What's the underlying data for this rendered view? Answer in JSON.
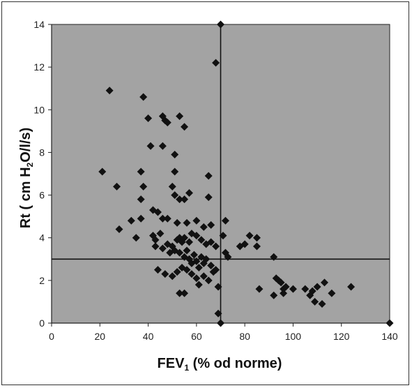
{
  "chart_data": {
    "type": "scatter",
    "xlabel": "FEV1 (% od norme)",
    "xlabel_parts": {
      "main": "FEV",
      "sub": "1",
      "rest": " (% od norme)"
    },
    "ylabel": "Rt ( cm H2O/l/s)",
    "ylabel_parts": {
      "a": "Rt ( cm H",
      "sub": "2",
      "b": "O/l/s)"
    },
    "xlim": [
      0,
      140
    ],
    "ylim": [
      0,
      14
    ],
    "xticks": [
      "0",
      "20",
      "40",
      "60",
      "80",
      "100",
      "120",
      "140"
    ],
    "yticks": [
      "0",
      "2",
      "4",
      "6",
      "8",
      "10",
      "12",
      "14"
    ],
    "reference_lines": {
      "x": 70,
      "y": 3
    },
    "plot_background": "#a3a3a3",
    "marker_color": "#111111",
    "marker": "diamond",
    "grid": false,
    "points": [
      [
        24,
        10.9
      ],
      [
        38,
        10.6
      ],
      [
        40,
        9.6
      ],
      [
        46,
        9.7
      ],
      [
        47,
        9.5
      ],
      [
        48,
        9.4
      ],
      [
        53,
        9.7
      ],
      [
        55,
        9.2
      ],
      [
        68,
        12.2
      ],
      [
        70,
        14
      ],
      [
        41,
        8.3
      ],
      [
        46,
        8.3
      ],
      [
        51,
        7.9
      ],
      [
        21,
        7.1
      ],
      [
        37,
        7.1
      ],
      [
        51,
        7.1
      ],
      [
        65,
        6.9
      ],
      [
        27,
        6.4
      ],
      [
        38,
        6.4
      ],
      [
        50,
        6.4
      ],
      [
        51,
        6.0
      ],
      [
        57,
        6.1
      ],
      [
        65,
        5.9
      ],
      [
        37,
        5.8
      ],
      [
        53,
        5.8
      ],
      [
        55,
        5.8
      ],
      [
        42,
        5.3
      ],
      [
        44,
        5.2
      ],
      [
        46,
        4.9
      ],
      [
        48,
        4.9
      ],
      [
        52,
        4.7
      ],
      [
        56,
        4.7
      ],
      [
        60,
        4.8
      ],
      [
        63,
        4.5
      ],
      [
        66,
        4.6
      ],
      [
        72,
        4.8
      ],
      [
        28,
        4.4
      ],
      [
        33,
        4.8
      ],
      [
        37,
        4.9
      ],
      [
        35,
        4.0
      ],
      [
        42,
        4.1
      ],
      [
        43,
        3.9
      ],
      [
        45,
        4.2
      ],
      [
        48,
        3.7
      ],
      [
        50,
        3.6
      ],
      [
        52,
        3.9
      ],
      [
        53,
        4.0
      ],
      [
        54,
        3.8
      ],
      [
        55,
        4.0
      ],
      [
        57,
        3.8
      ],
      [
        58,
        4.2
      ],
      [
        60,
        4.1
      ],
      [
        62,
        3.9
      ],
      [
        64,
        3.7
      ],
      [
        66,
        3.8
      ],
      [
        68,
        3.6
      ],
      [
        71,
        4.1
      ],
      [
        72,
        3.3
      ],
      [
        73,
        3.1
      ],
      [
        78,
        3.6
      ],
      [
        80,
        3.7
      ],
      [
        82,
        4.1
      ],
      [
        85,
        4.0
      ],
      [
        85,
        3.6
      ],
      [
        43,
        3.6
      ],
      [
        46,
        3.5
      ],
      [
        49,
        3.3
      ],
      [
        51,
        3.4
      ],
      [
        53,
        3.3
      ],
      [
        55,
        3.1
      ],
      [
        56,
        3.4
      ],
      [
        57,
        3.0
      ],
      [
        58,
        2.8
      ],
      [
        59,
        3.2
      ],
      [
        60,
        2.9
      ],
      [
        61,
        2.6
      ],
      [
        62,
        3.1
      ],
      [
        63,
        2.8
      ],
      [
        64,
        3.0
      ],
      [
        66,
        2.7
      ],
      [
        68,
        2.5
      ],
      [
        44,
        2.5
      ],
      [
        47,
        2.3
      ],
      [
        50,
        2.2
      ],
      [
        52,
        2.4
      ],
      [
        54,
        2.6
      ],
      [
        56,
        2.5
      ],
      [
        58,
        2.3
      ],
      [
        60,
        2.1
      ],
      [
        61,
        1.8
      ],
      [
        63,
        2.2
      ],
      [
        65,
        2.0
      ],
      [
        67,
        2.4
      ],
      [
        69,
        1.7
      ],
      [
        53,
        1.4
      ],
      [
        55,
        1.4
      ],
      [
        92,
        3.1
      ],
      [
        93,
        2.1
      ],
      [
        94,
        2.0
      ],
      [
        95,
        1.9
      ],
      [
        96,
        1.6
      ],
      [
        97,
        1.7
      ],
      [
        100,
        1.6
      ],
      [
        86,
        1.6
      ],
      [
        92,
        1.3
      ],
      [
        96,
        1.4
      ],
      [
        105,
        1.6
      ],
      [
        108,
        1.5
      ],
      [
        110,
        1.7
      ],
      [
        113,
        1.9
      ],
      [
        116,
        1.4
      ],
      [
        107,
        1.3
      ],
      [
        109,
        1.0
      ],
      [
        112,
        0.9
      ],
      [
        124,
        1.7
      ],
      [
        69,
        0.45
      ],
      [
        70,
        0
      ],
      [
        140,
        0
      ]
    ]
  }
}
